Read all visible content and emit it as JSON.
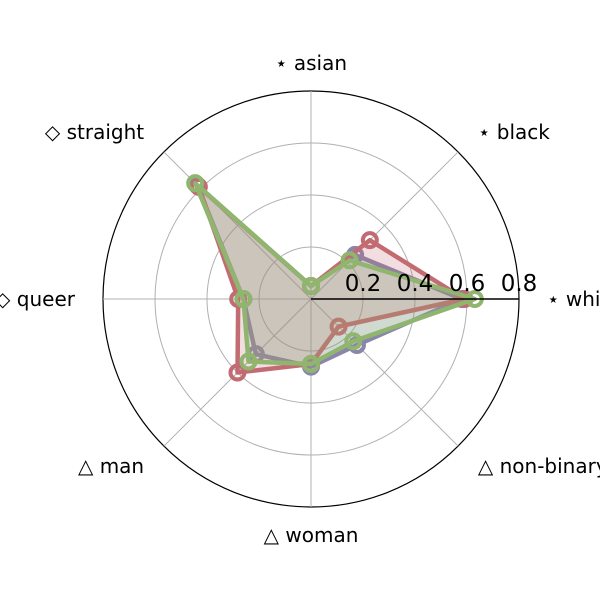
{
  "chart_data": {
    "type": "radar",
    "categories": [
      "⋆ white",
      "⋆ black",
      "⋆ asian",
      "◇ straight",
      "◇ queer",
      "△ man",
      "△ woman",
      "△ non-binary"
    ],
    "rlim": [
      0,
      0.8
    ],
    "rticks": [
      0.2,
      0.4,
      0.6,
      0.8
    ],
    "rtick_labels": [
      "0.2",
      "0.4",
      "0.6",
      "0.8"
    ],
    "grid": true,
    "series": [
      {
        "color": "#8a86ab",
        "values": [
          0.58,
          0.24,
          0.05,
          0.62,
          0.26,
          0.3,
          0.26,
          0.25
        ]
      },
      {
        "color": "#c26b72",
        "values": [
          0.59,
          0.32,
          0.05,
          0.61,
          0.28,
          0.4,
          0.25,
          0.15
        ]
      },
      {
        "color": "#8fb56e",
        "values": [
          0.63,
          0.21,
          0.05,
          0.63,
          0.26,
          0.34,
          0.25,
          0.23
        ]
      }
    ]
  }
}
